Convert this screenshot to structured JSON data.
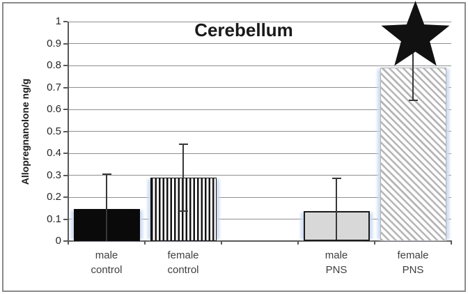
{
  "chart_data": {
    "type": "bar",
    "title": "Cerebellum",
    "ylabel": "Allopregnanolone ng/g",
    "xlabel": "",
    "ylim": [
      0,
      1
    ],
    "ytick_step": 0.1,
    "yticks": [
      "1",
      "0.9",
      "0.8",
      "0.7",
      "0.6",
      "0.5",
      "0.4",
      "0.3",
      "0.2",
      "0.1",
      "0"
    ],
    "categories": [
      "male control",
      "female control",
      "male PNS",
      "female PNS"
    ],
    "categories_lines": [
      [
        "male",
        "control"
      ],
      [
        "female",
        "control"
      ],
      [
        "male",
        "PNS"
      ],
      [
        "female",
        "PNS"
      ]
    ],
    "values": [
      0.145,
      0.29,
      0.135,
      0.79
    ],
    "error_bars": [
      {
        "top": 0.305,
        "bottom": 0.0,
        "cap_top": true,
        "cap_bottom": false
      },
      {
        "top": 0.44,
        "bottom": 0.135,
        "cap_top": true,
        "cap_bottom": true
      },
      {
        "top": 0.285,
        "bottom": 0.005,
        "cap_top": true,
        "cap_bottom": false
      },
      {
        "top": 0.95,
        "bottom": 0.64,
        "cap_top": false,
        "cap_bottom": true
      }
    ],
    "bar_styles": [
      "solid-black",
      "vertical-stripes",
      "light-gray-solid",
      "diagonal-stripes"
    ],
    "grid": true,
    "legend": false,
    "annotations": [
      {
        "symbol": "black-star",
        "over_category": "female PNS"
      }
    ],
    "colors": {
      "bar_black": "#0a0a0a",
      "bar_gray_fill": "#d8d8d8",
      "stripe_dark": "#141414",
      "diag_stripe_gray": "#b5b5b5",
      "edge_glow_blue": "#cddcf2",
      "gridline_gray": "#8f8f8f",
      "axis_gray": "#595959",
      "text_dark": "#262626",
      "label_gray": "#3f3f3f",
      "border_gray": "#8a8a8a",
      "star_black": "#111111"
    }
  }
}
